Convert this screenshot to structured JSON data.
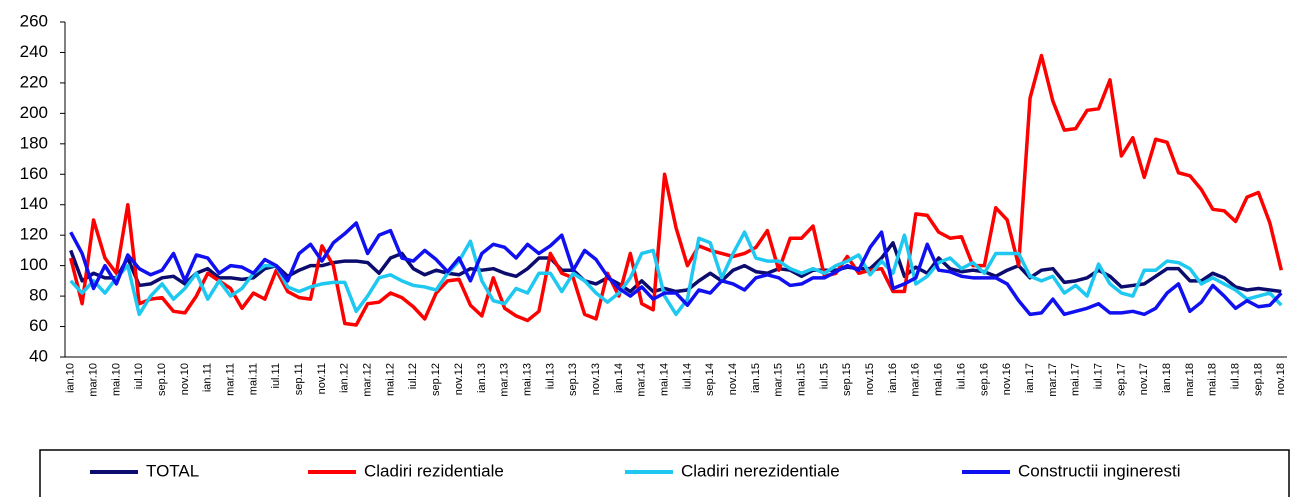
{
  "chart_data": {
    "type": "line",
    "categories": [
      "ian.10",
      null,
      "mar.10",
      null,
      "mai.10",
      null,
      "iul.10",
      null,
      "sep.10",
      null,
      "nov.10",
      null,
      "ian.11",
      null,
      "mar.11",
      null,
      "mai.11",
      null,
      "iul.11",
      null,
      "sep.11",
      null,
      "nov.11",
      null,
      "ian.12",
      null,
      "mar.12",
      null,
      "mai.12",
      null,
      "iul.12",
      null,
      "sep.12",
      null,
      "nov.12",
      null,
      "ian.13",
      null,
      "mar.13",
      null,
      "mai.13",
      null,
      "iul.13",
      null,
      "sep.13",
      null,
      "nov.13",
      null,
      "ian.14",
      null,
      "mar.14",
      null,
      "mai.14",
      null,
      "iul.14",
      null,
      "sep.14",
      null,
      "nov.14",
      null,
      "ian.15",
      null,
      "mar.15",
      null,
      "mai.15",
      null,
      "iul.15",
      null,
      "sep.15",
      null,
      "nov.15",
      null,
      "ian.16",
      null,
      "mar.16",
      null,
      "mai.16",
      null,
      "iul.16",
      null,
      "sep.16",
      null,
      "nov.16",
      null,
      "ian.17",
      null,
      "mar.17",
      null,
      "mai.17",
      null,
      "iul.17",
      null,
      "sep.17",
      null,
      "nov.17",
      null,
      "ian.18",
      null,
      "mar.18",
      null,
      "mai.18",
      null,
      "iul.18",
      null,
      "sep.18",
      null,
      "nov.18"
    ],
    "series": [
      {
        "name": "TOTAL",
        "color": "#0c0c6e",
        "values": [
          110,
          90,
          95,
          92,
          92,
          105,
          87,
          88,
          92,
          93,
          88,
          95,
          98,
          92,
          92,
          91,
          92,
          98,
          100,
          93,
          97,
          100,
          100,
          102,
          103,
          103,
          102,
          95,
          105,
          108,
          98,
          94,
          97,
          95,
          94,
          98,
          97,
          98,
          95,
          93,
          98,
          105,
          105,
          97,
          97,
          90,
          88,
          92,
          88,
          83,
          90,
          83,
          85,
          83,
          84,
          90,
          95,
          90,
          97,
          100,
          96,
          95,
          98,
          97,
          93,
          97,
          97,
          97,
          99,
          98,
          98,
          105,
          115,
          93,
          99,
          95,
          105,
          98,
          96,
          97,
          96,
          93,
          97,
          100,
          92,
          97,
          98,
          89,
          90,
          92,
          97,
          93,
          86,
          87,
          88,
          93,
          98,
          98,
          90,
          90,
          95,
          92,
          86,
          84,
          85,
          84,
          83
        ]
      },
      {
        "name": "Cladiri rezidentiale",
        "color": "#ff0000",
        "values": [
          105,
          75,
          130,
          105,
          95,
          140,
          75,
          78,
          79,
          70,
          69,
          80,
          95,
          90,
          85,
          72,
          82,
          78,
          97,
          83,
          79,
          78,
          113,
          100,
          62,
          61,
          75,
          76,
          82,
          79,
          73,
          65,
          82,
          90,
          91,
          74,
          67,
          92,
          72,
          67,
          64,
          70,
          108,
          95,
          92,
          68,
          65,
          95,
          80,
          108,
          75,
          71,
          160,
          125,
          100,
          113,
          110,
          108,
          106,
          108,
          112,
          123,
          97,
          118,
          118,
          126,
          93,
          95,
          106,
          95,
          97,
          98,
          83,
          83,
          134,
          133,
          122,
          118,
          119,
          100,
          100,
          138,
          130,
          100,
          210,
          238,
          208,
          189,
          190,
          202,
          203,
          222,
          172,
          184,
          158,
          183,
          181,
          161,
          159,
          150,
          137,
          136,
          129,
          145,
          148,
          128,
          97
        ]
      },
      {
        "name": "Cladiri nerezidentiale",
        "color": "#1ec8f0",
        "values": [
          90,
          82,
          90,
          82,
          92,
          100,
          68,
          80,
          88,
          78,
          85,
          95,
          78,
          90,
          80,
          85,
          95,
          100,
          100,
          86,
          83,
          86,
          88,
          89,
          89,
          70,
          80,
          92,
          94,
          90,
          87,
          86,
          84,
          95,
          103,
          116,
          90,
          77,
          75,
          85,
          82,
          95,
          95,
          83,
          95,
          90,
          82,
          76,
          82,
          92,
          108,
          110,
          80,
          68,
          78,
          118,
          115,
          92,
          108,
          122,
          105,
          103,
          103,
          98,
          95,
          98,
          95,
          100,
          103,
          107,
          94,
          103,
          95,
          120,
          88,
          93,
          102,
          105,
          98,
          102,
          95,
          108,
          108,
          108,
          93,
          90,
          93,
          82,
          87,
          80,
          101,
          88,
          82,
          80,
          97,
          97,
          103,
          102,
          98,
          88,
          92,
          88,
          84,
          78,
          80,
          82,
          74
        ]
      },
      {
        "name": "Constructii ingineresti",
        "color": "#1010f0",
        "values": [
          122,
          108,
          85,
          100,
          88,
          107,
          98,
          94,
          97,
          108,
          90,
          107,
          105,
          95,
          100,
          99,
          95,
          104,
          100,
          90,
          108,
          114,
          103,
          115,
          121,
          128,
          108,
          120,
          123,
          105,
          103,
          110,
          104,
          96,
          105,
          90,
          108,
          114,
          112,
          105,
          114,
          108,
          113,
          120,
          97,
          110,
          104,
          93,
          85,
          80,
          86,
          78,
          82,
          82,
          74,
          84,
          82,
          90,
          88,
          84,
          92,
          94,
          92,
          87,
          88,
          92,
          92,
          96,
          100,
          97,
          112,
          122,
          85,
          88,
          92,
          114,
          97,
          96,
          93,
          92,
          92,
          92,
          88,
          77,
          68,
          69,
          78,
          68,
          70,
          72,
          75,
          69,
          69,
          70,
          68,
          72,
          82,
          88,
          70,
          76,
          87,
          80,
          72,
          77,
          73,
          74,
          82
        ]
      }
    ],
    "ylim": [
      40,
      260
    ],
    "yticks": [
      40,
      60,
      80,
      100,
      120,
      140,
      160,
      180,
      200,
      220,
      240,
      260
    ],
    "grid": false,
    "legend": "bottom"
  }
}
